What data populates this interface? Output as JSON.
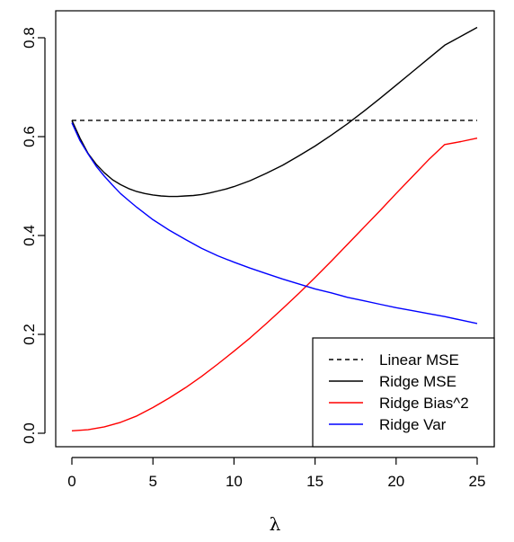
{
  "chart_data": {
    "type": "line",
    "title": "",
    "xlabel": "λ",
    "ylabel": "",
    "xlim": [
      -1,
      26
    ],
    "ylim": [
      -0.03,
      0.85
    ],
    "xticks": [
      0,
      5,
      10,
      15,
      20,
      25
    ],
    "xtick_labels": [
      "0",
      "5",
      "10",
      "15",
      "20",
      "25"
    ],
    "yticks": [
      0.0,
      0.2,
      0.4,
      0.6,
      0.8
    ],
    "ytick_labels": [
      "0.0",
      "0.2",
      "0.4",
      "0.6",
      "0.8"
    ],
    "grid": false,
    "legend_position": "bottom-right",
    "series": [
      {
        "name": "Linear MSE",
        "color": "#000000",
        "dash": "dashed",
        "x": [
          0,
          25
        ],
        "y": [
          0.633,
          0.633
        ]
      },
      {
        "name": "Ridge MSE",
        "color": "#000000",
        "dash": "solid",
        "x": [
          0,
          0.5,
          1,
          1.5,
          2,
          2.5,
          3,
          3.5,
          4,
          4.5,
          5,
          5.5,
          6,
          6.5,
          7,
          7.5,
          8,
          8.5,
          9,
          9.5,
          10,
          11,
          12,
          13,
          14,
          15,
          16,
          17,
          18,
          19,
          20,
          21,
          22,
          23,
          24,
          25
        ],
        "y": [
          0.633,
          0.597,
          0.566,
          0.544,
          0.527,
          0.513,
          0.503,
          0.495,
          0.489,
          0.485,
          0.482,
          0.48,
          0.479,
          0.479,
          0.48,
          0.481,
          0.483,
          0.486,
          0.49,
          0.494,
          0.499,
          0.511,
          0.526,
          0.542,
          0.561,
          0.581,
          0.603,
          0.626,
          0.651,
          0.677,
          0.704,
          0.731,
          0.758,
          0.785,
          0.803,
          0.821
        ]
      },
      {
        "name": "Ridge Bias^2",
        "color": "#ff0000",
        "dash": "solid",
        "x": [
          0,
          1,
          2,
          3,
          4,
          5,
          6,
          7,
          8,
          9,
          10,
          11,
          12,
          13,
          14,
          15,
          16,
          17,
          18,
          19,
          20,
          21,
          22,
          23,
          24,
          25
        ],
        "y": [
          0.005,
          0.007,
          0.013,
          0.022,
          0.035,
          0.052,
          0.071,
          0.092,
          0.115,
          0.14,
          0.166,
          0.193,
          0.222,
          0.252,
          0.283,
          0.315,
          0.348,
          0.382,
          0.416,
          0.45,
          0.485,
          0.519,
          0.553,
          0.584,
          0.59,
          0.597
        ]
      },
      {
        "name": "Ridge Var",
        "color": "#0000ff",
        "dash": "solid",
        "x": [
          0,
          0.5,
          1,
          1.5,
          2,
          2.5,
          3,
          3.5,
          4,
          5,
          6,
          7,
          8,
          9,
          10,
          11,
          12,
          13,
          14,
          15,
          16,
          17,
          18,
          19,
          20,
          21,
          22,
          23,
          24,
          25
        ],
        "y": [
          0.628,
          0.592,
          0.565,
          0.54,
          0.52,
          0.502,
          0.485,
          0.471,
          0.457,
          0.432,
          0.411,
          0.392,
          0.374,
          0.359,
          0.346,
          0.334,
          0.323,
          0.312,
          0.302,
          0.292,
          0.284,
          0.275,
          0.268,
          0.261,
          0.254,
          0.248,
          0.242,
          0.236,
          0.229,
          0.222
        ]
      }
    ]
  }
}
